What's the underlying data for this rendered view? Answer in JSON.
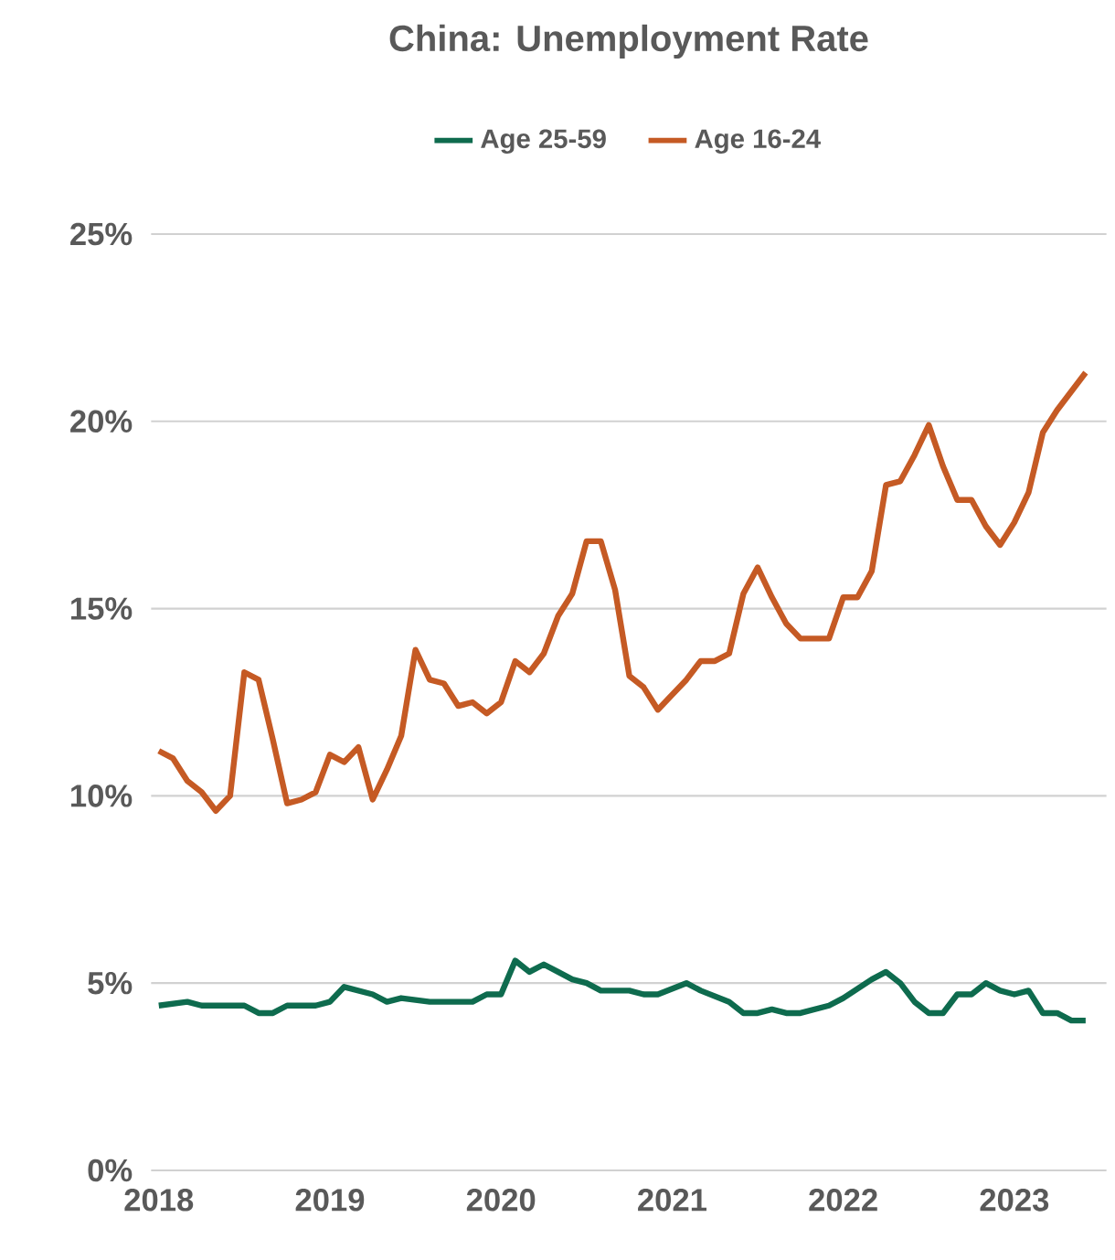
{
  "chart_data": {
    "type": "line",
    "title": "China: Unemployment Rate",
    "x": [
      "2018-01",
      "2018-02",
      "2018-03",
      "2018-04",
      "2018-05",
      "2018-06",
      "2018-07",
      "2018-08",
      "2018-09",
      "2018-10",
      "2018-11",
      "2018-12",
      "2019-01",
      "2019-02",
      "2019-03",
      "2019-04",
      "2019-05",
      "2019-06",
      "2019-07",
      "2019-08",
      "2019-09",
      "2019-10",
      "2019-11",
      "2019-12",
      "2020-01",
      "2020-02",
      "2020-03",
      "2020-04",
      "2020-05",
      "2020-06",
      "2020-07",
      "2020-08",
      "2020-09",
      "2020-10",
      "2020-11",
      "2020-12",
      "2021-01",
      "2021-02",
      "2021-03",
      "2021-04",
      "2021-05",
      "2021-06",
      "2021-07",
      "2021-08",
      "2021-09",
      "2021-10",
      "2021-11",
      "2021-12",
      "2022-01",
      "2022-02",
      "2022-03",
      "2022-04",
      "2022-05",
      "2022-06",
      "2022-07",
      "2022-08",
      "2022-09",
      "2022-10",
      "2022-11",
      "2022-12",
      "2023-01",
      "2023-02",
      "2023-03",
      "2023-04",
      "2023-05",
      "2023-06"
    ],
    "series": [
      {
        "name": "Age 25-59",
        "color": "#0e6b4e",
        "x": [
          "2018-01",
          "2018-03",
          "2018-04",
          "2018-07",
          "2018-08",
          "2018-09",
          "2018-10",
          "2018-12",
          "2019-01",
          "2019-02",
          "2019-04",
          "2019-05",
          "2019-06",
          "2019-08",
          "2019-09",
          "2019-11",
          "2019-12",
          "2020-01",
          "2020-02",
          "2020-03",
          "2020-04",
          "2020-05",
          "2020-06",
          "2020-07",
          "2020-08",
          "2020-10",
          "2020-11",
          "2020-12",
          "2021-02",
          "2021-03",
          "2021-05",
          "2021-06",
          "2021-07",
          "2021-08",
          "2021-09",
          "2021-10",
          "2021-12",
          "2022-01",
          "2022-03",
          "2022-04",
          "2022-05",
          "2022-06",
          "2022-07",
          "2022-08",
          "2022-09",
          "2022-10",
          "2022-11",
          "2022-12",
          "2023-01",
          "2023-02",
          "2023-03",
          "2023-04",
          "2023-05",
          "2023-06"
        ],
        "values": [
          4.4,
          4.5,
          4.4,
          4.4,
          4.2,
          4.2,
          4.4,
          4.4,
          4.5,
          4.9,
          4.7,
          4.5,
          4.6,
          4.5,
          4.5,
          4.5,
          4.7,
          4.7,
          5.6,
          5.3,
          5.5,
          5.3,
          5.1,
          5.0,
          4.8,
          4.8,
          4.7,
          4.7,
          5.0,
          4.8,
          4.5,
          4.2,
          4.2,
          4.3,
          4.2,
          4.2,
          4.4,
          4.6,
          5.1,
          5.3,
          5.0,
          4.5,
          4.2,
          4.2,
          4.7,
          4.7,
          5.0,
          4.8,
          4.7,
          4.8,
          4.2,
          4.2,
          4.0,
          4.0
        ]
      },
      {
        "name": "Age 16-24",
        "color": "#c55a24",
        "values": [
          11.2,
          11.0,
          10.4,
          10.1,
          9.6,
          10.0,
          13.3,
          13.1,
          11.5,
          9.8,
          9.9,
          10.1,
          11.1,
          10.9,
          11.3,
          9.9,
          10.7,
          11.6,
          13.9,
          13.1,
          13.0,
          12.4,
          12.5,
          12.2,
          12.5,
          13.6,
          13.3,
          13.8,
          14.8,
          15.4,
          16.8,
          16.8,
          15.5,
          13.2,
          12.9,
          12.3,
          12.7,
          13.1,
          13.6,
          13.6,
          13.8,
          15.4,
          16.1,
          15.3,
          14.6,
          14.2,
          14.2,
          14.2,
          15.3,
          15.3,
          16.0,
          18.3,
          18.4,
          19.1,
          19.9,
          18.8,
          17.9,
          17.9,
          17.2,
          16.7,
          17.3,
          18.1,
          19.7,
          20.3,
          20.8,
          21.3
        ]
      }
    ],
    "xlim": [
      "2017-12-15",
      "2023-07-15"
    ],
    "xticks": [
      "2018",
      "2019",
      "2020",
      "2021",
      "2022",
      "2023"
    ],
    "ylim": [
      0,
      25
    ],
    "yticks": [
      {
        "value": 0,
        "label": "0%"
      },
      {
        "value": 5,
        "label": "5%"
      },
      {
        "value": 10,
        "label": "10%"
      },
      {
        "value": 15,
        "label": "15%"
      },
      {
        "value": 20,
        "label": "20%"
      },
      {
        "value": 25,
        "label": "25%"
      }
    ],
    "grid": "y",
    "legend": "top",
    "marker": "none",
    "line_style": "solid"
  }
}
